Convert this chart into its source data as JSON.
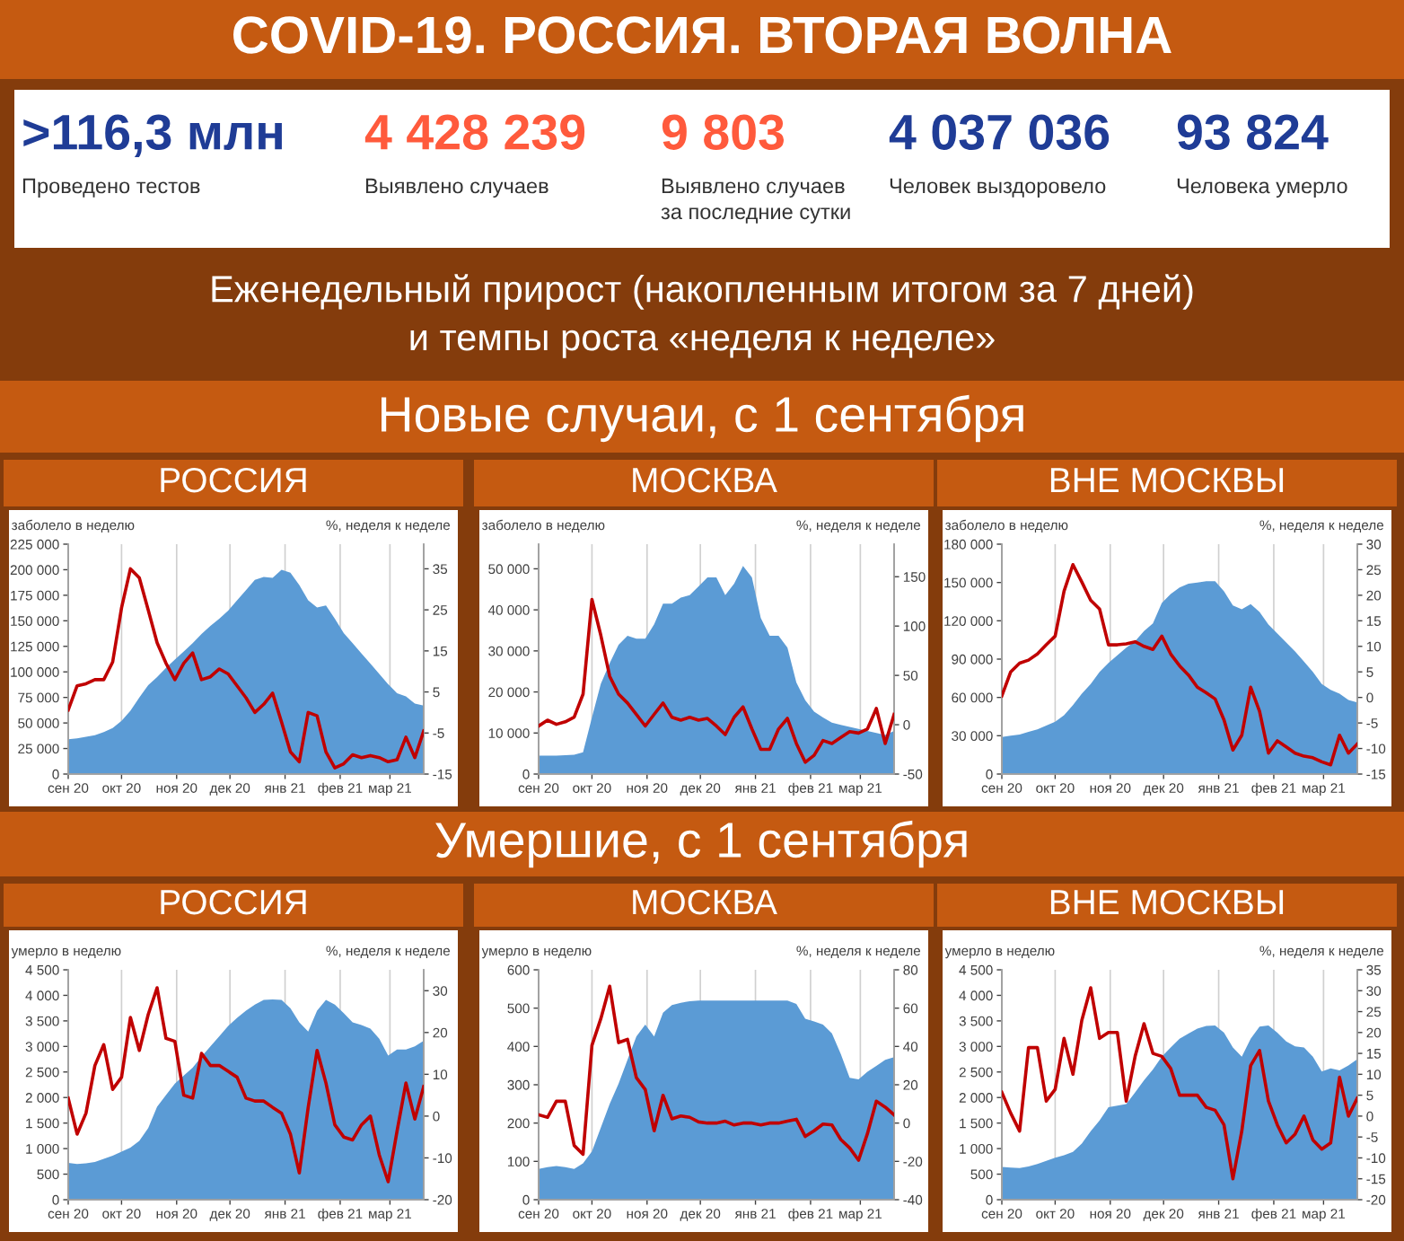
{
  "chart_data": [
    {
      "type": "other",
      "title": "COVID-19. РОССИЯ. ВТОРАЯ ВОЛНА",
      "subtitle": "Еженедельный прирост (накопленным итогом за 7 дней)\nи темпы роста «неделя к неделе»",
      "annotations": [
        ">116,3 млн",
        "Проведено тестов",
        "4 428 239",
        "Выявлено случаев",
        "9 803",
        "Выявлено случаев\nза последние сутки",
        "4 037 036",
        "Человек выздоровело",
        "93 824",
        "Человека умерло",
        "Новые случаи, с 1 сентября",
        "Умершие, с 1 сентября"
      ],
      "colors": [
        "#1f3c96",
        "#ff5a3c",
        "#ff5a3c",
        "#1f3c96",
        "#1f3c96"
      ]
    },
    {
      "type": "area",
      "title": "РОССИЯ",
      "ylabel": "заболело в неделю",
      "y2label": "%, неделя к неделе",
      "grid": "x",
      "x": [
        "2020-09-01",
        "2020-09-06",
        "2020-09-11",
        "2020-09-16",
        "2020-09-21",
        "2020-09-26",
        "2020-10-01",
        "2020-10-06",
        "2020-10-11",
        "2020-10-16",
        "2020-10-21",
        "2020-10-26",
        "2020-10-31",
        "2020-11-05",
        "2020-11-10",
        "2020-11-15",
        "2020-11-20",
        "2020-11-25",
        "2020-11-30",
        "2020-12-05",
        "2020-12-10",
        "2020-12-15",
        "2020-12-20",
        "2020-12-25",
        "2020-12-30",
        "2021-01-04",
        "2021-01-09",
        "2021-01-14",
        "2021-01-19",
        "2021-01-24",
        "2021-01-29",
        "2021-02-03",
        "2021-02-08",
        "2021-02-13",
        "2021-02-18",
        "2021-02-23",
        "2021-02-28",
        "2021-03-05",
        "2021-03-10",
        "2021-03-15",
        "2021-03-20"
      ],
      "xlim": [
        "2020-09-01",
        "2021-03-20"
      ],
      "xticks": [
        {
          "value": "2020-09-01",
          "label": "сен 20"
        },
        {
          "value": "2020-10-01",
          "label": "окт 20"
        },
        {
          "value": "2020-11-01",
          "label": "ноя 20"
        },
        {
          "value": "2020-12-01",
          "label": "дек 20"
        },
        {
          "value": "2021-01-01",
          "label": "янв 21"
        },
        {
          "value": "2021-02-01",
          "label": "фев 21"
        },
        {
          "value": "2021-03-01",
          "label": "мар 21"
        }
      ],
      "ylim": [
        0,
        225000
      ],
      "yticks": [
        0,
        {
          "value": 25000,
          "label": "25 000"
        },
        {
          "value": 50000,
          "label": "50 000"
        },
        {
          "value": 75000,
          "label": "75 000"
        },
        {
          "value": 100000,
          "label": "100 000"
        },
        {
          "value": 125000,
          "label": "125 000"
        },
        {
          "value": 150000,
          "label": "150 000"
        },
        {
          "value": 175000,
          "label": "175 000"
        },
        {
          "value": 200000,
          "label": "200 000"
        },
        {
          "value": 225000,
          "label": "225 000"
        }
      ],
      "y2lim": [
        -15,
        41
      ],
      "y2ticks": [
        -15,
        -5,
        5,
        15,
        25,
        35
      ],
      "series": [
        {
          "type": "area",
          "color": "#5b9bd5",
          "values": [
            34000,
            35000,
            36500,
            38000,
            41000,
            45000,
            52000,
            62000,
            75000,
            87000,
            95000,
            104000,
            112000,
            120000,
            128000,
            137000,
            145000,
            152000,
            160000,
            170000,
            180000,
            190000,
            193000,
            192000,
            200000,
            197000,
            185000,
            170000,
            163000,
            165000,
            152000,
            138000,
            128000,
            118000,
            108000,
            98000,
            88000,
            79000,
            76000,
            69000,
            67000
          ]
        },
        {
          "type": "line",
          "axis": "y2",
          "color": "#c00000",
          "values": [
            0.6,
            6.5,
            7,
            8,
            8,
            12.3,
            25.5,
            35,
            32.8,
            25,
            17,
            12,
            8,
            12,
            14.5,
            8,
            8.7,
            10.6,
            9.4,
            6.5,
            3.6,
            0,
            2,
            4.7,
            -2.3,
            -9.6,
            -12,
            0,
            -0.8,
            -9.6,
            -13.5,
            -12.5,
            -10.3,
            -11,
            -10.5,
            -11,
            -12,
            -11.5,
            -6,
            -11,
            -4.5
          ]
        }
      ]
    },
    {
      "type": "area",
      "title": "МОСКВА",
      "ylabel": "заболело в неделю",
      "y2label": "%, неделя к неделе",
      "grid": "x",
      "x": [
        "2020-09-01",
        "2020-09-06",
        "2020-09-11",
        "2020-09-16",
        "2020-09-21",
        "2020-09-26",
        "2020-10-01",
        "2020-10-06",
        "2020-10-11",
        "2020-10-16",
        "2020-10-21",
        "2020-10-26",
        "2020-10-31",
        "2020-11-05",
        "2020-11-10",
        "2020-11-15",
        "2020-11-20",
        "2020-11-25",
        "2020-11-30",
        "2020-12-05",
        "2020-12-10",
        "2020-12-15",
        "2020-12-20",
        "2020-12-25",
        "2020-12-30",
        "2021-01-04",
        "2021-01-09",
        "2021-01-14",
        "2021-01-19",
        "2021-01-24",
        "2021-01-29",
        "2021-02-03",
        "2021-02-08",
        "2021-02-13",
        "2021-02-18",
        "2021-02-23",
        "2021-02-28",
        "2021-03-05",
        "2021-03-10",
        "2021-03-15",
        "2021-03-20"
      ],
      "xlim": [
        "2020-09-01",
        "2021-03-20"
      ],
      "xticks": [
        {
          "value": "2020-09-01",
          "label": "сен 20"
        },
        {
          "value": "2020-10-01",
          "label": "окт 20"
        },
        {
          "value": "2020-11-01",
          "label": "ноя 20"
        },
        {
          "value": "2020-12-01",
          "label": "дек 20"
        },
        {
          "value": "2021-01-01",
          "label": "янв 21"
        },
        {
          "value": "2021-02-01",
          "label": "фев 21"
        },
        {
          "value": "2021-03-01",
          "label": "мар 21"
        }
      ],
      "ylim": [
        0,
        56000
      ],
      "yticks": [
        0,
        {
          "value": 10000,
          "label": "10 000"
        },
        {
          "value": 20000,
          "label": "20 000"
        },
        {
          "value": 30000,
          "label": "30 000"
        },
        {
          "value": 40000,
          "label": "40 000"
        },
        {
          "value": 50000,
          "label": "50 000"
        }
      ],
      "y2lim": [
        -50,
        183
      ],
      "y2ticks": [
        -50,
        0,
        50,
        100,
        150
      ],
      "series": [
        {
          "type": "area",
          "color": "#5b9bd5",
          "values": [
            4500,
            4500,
            4500,
            4600,
            4700,
            5300,
            13800,
            22000,
            27000,
            31500,
            33700,
            33000,
            33000,
            36500,
            41500,
            41500,
            43000,
            43600,
            45700,
            47900,
            47900,
            43600,
            46400,
            50700,
            47900,
            38000,
            33700,
            33700,
            30800,
            22300,
            18000,
            15200,
            13800,
            12500,
            12000,
            11500,
            11000,
            10500,
            10000,
            9500,
            10500
          ]
        },
        {
          "type": "line",
          "axis": "y2",
          "color": "#c00000",
          "values": [
            -1.3,
            4.6,
            0.4,
            3,
            7.6,
            31,
            127,
            90.6,
            49,
            31,
            22,
            10.5,
            -1.3,
            10.5,
            22,
            7.6,
            4.6,
            7.6,
            4.6,
            6.4,
            -1.3,
            -10,
            7.6,
            18,
            -4.3,
            -25,
            -25,
            -4.3,
            6.4,
            -19,
            -38,
            -31,
            -16,
            -19,
            -13,
            -7,
            -8.5,
            -4.3,
            16.5,
            -19,
            10.5
          ]
        }
      ]
    },
    {
      "type": "area",
      "title": "ВНЕ МОСКВЫ",
      "ylabel": "заболело в неделю",
      "y2label": "%, неделя к неделе",
      "grid": "x",
      "x": [
        "2020-09-01",
        "2020-09-06",
        "2020-09-11",
        "2020-09-16",
        "2020-09-21",
        "2020-09-26",
        "2020-10-01",
        "2020-10-06",
        "2020-10-11",
        "2020-10-16",
        "2020-10-21",
        "2020-10-26",
        "2020-10-31",
        "2020-11-05",
        "2020-11-10",
        "2020-11-15",
        "2020-11-20",
        "2020-11-25",
        "2020-11-30",
        "2020-12-05",
        "2020-12-10",
        "2020-12-15",
        "2020-12-20",
        "2020-12-25",
        "2020-12-30",
        "2021-01-04",
        "2021-01-09",
        "2021-01-14",
        "2021-01-19",
        "2021-01-24",
        "2021-01-29",
        "2021-02-03",
        "2021-02-08",
        "2021-02-13",
        "2021-02-18",
        "2021-02-23",
        "2021-02-28",
        "2021-03-05",
        "2021-03-10",
        "2021-03-15",
        "2021-03-20"
      ],
      "xlim": [
        "2020-09-01",
        "2021-03-20"
      ],
      "xticks": [
        {
          "value": "2020-09-01",
          "label": "сен 20"
        },
        {
          "value": "2020-10-01",
          "label": "окт 20"
        },
        {
          "value": "2020-11-01",
          "label": "ноя 20"
        },
        {
          "value": "2020-12-01",
          "label": "дек 20"
        },
        {
          "value": "2021-01-01",
          "label": "янв 21"
        },
        {
          "value": "2021-02-01",
          "label": "фев 21"
        },
        {
          "value": "2021-03-01",
          "label": "мар 21"
        }
      ],
      "ylim": [
        0,
        180000
      ],
      "yticks": [
        0,
        {
          "value": 30000,
          "label": "30 000"
        },
        {
          "value": 60000,
          "label": "60 000"
        },
        {
          "value": 90000,
          "label": "90 000"
        },
        {
          "value": 120000,
          "label": "120 000"
        },
        {
          "value": 150000,
          "label": "150 000"
        },
        {
          "value": 180000,
          "label": "180 000"
        }
      ],
      "y2lim": [
        -15,
        30
      ],
      "y2ticks": [
        -15,
        -10,
        -5,
        0,
        5,
        10,
        15,
        20,
        25,
        30
      ],
      "series": [
        {
          "type": "area",
          "color": "#5b9bd5",
          "values": [
            29000,
            30000,
            31000,
            33000,
            35000,
            38000,
            41000,
            46000,
            54000,
            63000,
            70500,
            80000,
            87000,
            93000,
            99000,
            104000,
            112000,
            118000,
            134000,
            141000,
            146000,
            149000,
            150000,
            151000,
            151000,
            143000,
            132000,
            129000,
            133000,
            127000,
            117000,
            110000,
            103000,
            96000,
            88000,
            80000,
            70500,
            66000,
            63000,
            58000,
            56000
          ]
        },
        {
          "type": "line",
          "axis": "y2",
          "color": "#c00000",
          "values": [
            0.3,
            5,
            6.7,
            7.3,
            8.5,
            10.3,
            12,
            20.8,
            26,
            22.6,
            19,
            17.3,
            10.3,
            10.3,
            10.5,
            10.9,
            10,
            9.4,
            12,
            8.5,
            6.2,
            4.4,
            2,
            0.9,
            -0.3,
            -4.4,
            -10.3,
            -7.4,
            2,
            -2.7,
            -10.9,
            -8.5,
            -9.7,
            -10.9,
            -11.5,
            -11.8,
            -12.6,
            -13.2,
            -7.4,
            -10.9,
            -9.1
          ]
        }
      ]
    },
    {
      "type": "area",
      "title": "РОССИЯ",
      "ylabel": "умерло в неделю",
      "y2label": "%, неделя к неделе",
      "grid": "x",
      "x": [
        "2020-09-01",
        "2020-09-06",
        "2020-09-11",
        "2020-09-16",
        "2020-09-21",
        "2020-09-26",
        "2020-10-01",
        "2020-10-06",
        "2020-10-11",
        "2020-10-16",
        "2020-10-21",
        "2020-10-26",
        "2020-10-31",
        "2020-11-05",
        "2020-11-10",
        "2020-11-15",
        "2020-11-20",
        "2020-11-25",
        "2020-11-30",
        "2020-12-05",
        "2020-12-10",
        "2020-12-15",
        "2020-12-20",
        "2020-12-25",
        "2020-12-30",
        "2021-01-04",
        "2021-01-09",
        "2021-01-14",
        "2021-01-19",
        "2021-01-24",
        "2021-01-29",
        "2021-02-03",
        "2021-02-08",
        "2021-02-13",
        "2021-02-18",
        "2021-02-23",
        "2021-02-28",
        "2021-03-05",
        "2021-03-10",
        "2021-03-15",
        "2021-03-20"
      ],
      "xlim": [
        "2020-09-01",
        "2021-03-20"
      ],
      "xticks": [
        {
          "value": "2020-09-01",
          "label": "сен 20"
        },
        {
          "value": "2020-10-01",
          "label": "окт 20"
        },
        {
          "value": "2020-11-01",
          "label": "ноя 20"
        },
        {
          "value": "2020-12-01",
          "label": "дек 20"
        },
        {
          "value": "2021-01-01",
          "label": "янв 21"
        },
        {
          "value": "2021-02-01",
          "label": "фев 21"
        },
        {
          "value": "2021-03-01",
          "label": "мар 21"
        }
      ],
      "ylim": [
        0,
        4500
      ],
      "yticks": [
        0,
        500,
        {
          "value": 1000,
          "label": "1 000"
        },
        {
          "value": 1500,
          "label": "1 500"
        },
        {
          "value": 2000,
          "label": "2 000"
        },
        {
          "value": 2500,
          "label": "2 500"
        },
        {
          "value": 3000,
          "label": "3 000"
        },
        {
          "value": 3500,
          "label": "3 500"
        },
        {
          "value": 4000,
          "label": "4 000"
        },
        {
          "value": 4500,
          "label": "4 500"
        }
      ],
      "y2lim": [
        -20,
        35
      ],
      "y2ticks": [
        -20,
        -10,
        0,
        10,
        20,
        30
      ],
      "series": [
        {
          "type": "area",
          "color": "#5b9bd5",
          "values": [
            720,
            700,
            710,
            740,
            800,
            860,
            940,
            1020,
            1150,
            1400,
            1820,
            2050,
            2270,
            2430,
            2585,
            2800,
            3000,
            3200,
            3400,
            3560,
            3700,
            3820,
            3910,
            3920,
            3910,
            3750,
            3470,
            3290,
            3700,
            3910,
            3820,
            3650,
            3470,
            3420,
            3350,
            3150,
            2820,
            2940,
            2940,
            3000,
            3110
          ]
        },
        {
          "type": "line",
          "axis": "y2",
          "color": "#c00000",
          "values": [
            4.3,
            -4.3,
            0.7,
            12.1,
            17.1,
            6.4,
            9.3,
            23.6,
            15.7,
            24.3,
            30.7,
            18.6,
            17.9,
            5,
            4.3,
            15,
            12.1,
            12.1,
            10.7,
            9.3,
            4.3,
            3.6,
            3.6,
            2.1,
            0.7,
            -4.3,
            -13.6,
            2.1,
            15.7,
            7.9,
            -2.1,
            -5,
            -5.7,
            -2.1,
            0,
            -9.3,
            -15.7,
            -3.6,
            7.9,
            -0.7,
            7.1
          ]
        }
      ]
    },
    {
      "type": "area",
      "title": "МОСКВА",
      "ylabel": "умерло в неделю",
      "y2label": "%, неделя к неделе",
      "grid": "x",
      "x": [
        "2020-09-01",
        "2020-09-06",
        "2020-09-11",
        "2020-09-16",
        "2020-09-21",
        "2020-09-26",
        "2020-10-01",
        "2020-10-06",
        "2020-10-11",
        "2020-10-16",
        "2020-10-21",
        "2020-10-26",
        "2020-10-31",
        "2020-11-05",
        "2020-11-10",
        "2020-11-15",
        "2020-11-20",
        "2020-11-25",
        "2020-11-30",
        "2020-12-05",
        "2020-12-10",
        "2020-12-15",
        "2020-12-20",
        "2020-12-25",
        "2020-12-30",
        "2021-01-04",
        "2021-01-09",
        "2021-01-14",
        "2021-01-19",
        "2021-01-24",
        "2021-01-29",
        "2021-02-03",
        "2021-02-08",
        "2021-02-13",
        "2021-02-18",
        "2021-02-23",
        "2021-02-28",
        "2021-03-05",
        "2021-03-10",
        "2021-03-15",
        "2021-03-20"
      ],
      "xlim": [
        "2020-09-01",
        "2021-03-20"
      ],
      "xticks": [
        {
          "value": "2020-09-01",
          "label": "сен 20"
        },
        {
          "value": "2020-10-01",
          "label": "окт 20"
        },
        {
          "value": "2020-11-01",
          "label": "ноя 20"
        },
        {
          "value": "2020-12-01",
          "label": "дек 20"
        },
        {
          "value": "2021-01-01",
          "label": "янв 21"
        },
        {
          "value": "2021-02-01",
          "label": "фев 21"
        },
        {
          "value": "2021-03-01",
          "label": "мар 21"
        }
      ],
      "ylim": [
        0,
        600
      ],
      "yticks": [
        0,
        100,
        200,
        300,
        400,
        500,
        600
      ],
      "y2lim": [
        -40,
        80
      ],
      "y2ticks": [
        -40,
        -20,
        0,
        20,
        40,
        60,
        80
      ],
      "series": [
        {
          "type": "area",
          "color": "#5b9bd5",
          "values": [
            80,
            85,
            88,
            85,
            80,
            95,
            126,
            188,
            250,
            303,
            365,
            426,
            457,
            426,
            488,
            508,
            514,
            518,
            520,
            520,
            520,
            520,
            520,
            520,
            520,
            520,
            520,
            520,
            520,
            511,
            472,
            465,
            457,
            434,
            380,
            318,
            314,
            334,
            349,
            365,
            372
          ]
        },
        {
          "type": "line",
          "axis": "y2",
          "color": "#c00000",
          "values": [
            4.3,
            3,
            11.4,
            11.4,
            -11.7,
            -16.3,
            40.6,
            54.5,
            71.4,
            42,
            43.7,
            23.7,
            17.5,
            -4,
            14.5,
            2.2,
            3.7,
            3,
            0.6,
            0,
            0,
            1,
            -1,
            0,
            0,
            -1,
            0,
            0,
            1,
            2,
            -7,
            -4,
            -0.5,
            -1,
            -8.6,
            -13,
            -19.4,
            -5.5,
            11.4,
            8.3,
            4.3
          ]
        }
      ]
    },
    {
      "type": "area",
      "title": "ВНЕ МОСКВЫ",
      "ylabel": "умерло в неделю",
      "y2label": "%, неделя к неделе",
      "grid": "x",
      "x": [
        "2020-09-01",
        "2020-09-06",
        "2020-09-11",
        "2020-09-16",
        "2020-09-21",
        "2020-09-26",
        "2020-10-01",
        "2020-10-06",
        "2020-10-11",
        "2020-10-16",
        "2020-10-21",
        "2020-10-26",
        "2020-10-31",
        "2020-11-05",
        "2020-11-10",
        "2020-11-15",
        "2020-11-20",
        "2020-11-25",
        "2020-11-30",
        "2020-12-05",
        "2020-12-10",
        "2020-12-15",
        "2020-12-20",
        "2020-12-25",
        "2020-12-30",
        "2021-01-04",
        "2021-01-09",
        "2021-01-14",
        "2021-01-19",
        "2021-01-24",
        "2021-01-29",
        "2021-02-03",
        "2021-02-08",
        "2021-02-13",
        "2021-02-18",
        "2021-02-23",
        "2021-02-28",
        "2021-03-05",
        "2021-03-10",
        "2021-03-15",
        "2021-03-20"
      ],
      "xlim": [
        "2020-09-01",
        "2021-03-20"
      ],
      "xticks": [
        {
          "value": "2020-09-01",
          "label": "сен 20"
        },
        {
          "value": "2020-10-01",
          "label": "окт 20"
        },
        {
          "value": "2020-11-01",
          "label": "ноя 20"
        },
        {
          "value": "2020-12-01",
          "label": "дек 20"
        },
        {
          "value": "2021-01-01",
          "label": "янв 21"
        },
        {
          "value": "2021-02-01",
          "label": "фев 21"
        },
        {
          "value": "2021-03-01",
          "label": "мар 21"
        }
      ],
      "ylim": [
        0,
        4500
      ],
      "yticks": [
        0,
        500,
        {
          "value": 1000,
          "label": "1 000"
        },
        {
          "value": 1500,
          "label": "1 500"
        },
        {
          "value": 2000,
          "label": "2 000"
        },
        {
          "value": 2500,
          "label": "2 500"
        },
        {
          "value": 3000,
          "label": "3 000"
        },
        {
          "value": 3500,
          "label": "3 500"
        },
        {
          "value": 4000,
          "label": "4 000"
        },
        {
          "value": 4500,
          "label": "4 500"
        }
      ],
      "y2lim": [
        -20,
        35
      ],
      "y2ticks": [
        -20,
        -15,
        -10,
        -5,
        0,
        5,
        10,
        15,
        20,
        25,
        30,
        35
      ],
      "series": [
        {
          "type": "area",
          "color": "#5b9bd5",
          "values": [
            640,
            630,
            620,
            650,
            700,
            760,
            820,
            870,
            935,
            1100,
            1340,
            1550,
            1810,
            1840,
            1870,
            2100,
            2340,
            2550,
            2800,
            2980,
            3150,
            3250,
            3350,
            3400,
            3410,
            3270,
            2980,
            2800,
            3150,
            3390,
            3410,
            3270,
            3100,
            3000,
            2980,
            2800,
            2510,
            2570,
            2530,
            2630,
            2750
          ]
        },
        {
          "type": "line",
          "axis": "y2",
          "color": "#c00000",
          "values": [
            5.7,
            0.7,
            -3.6,
            16.4,
            16.4,
            3.6,
            6.4,
            18.6,
            10,
            22.9,
            30.7,
            18.6,
            20,
            20,
            3.6,
            14.3,
            22.1,
            15,
            14.3,
            11.4,
            5,
            5,
            5,
            2.1,
            1.4,
            -2.1,
            -15,
            -3.6,
            12.1,
            15.7,
            3.6,
            -2.1,
            -6.4,
            -4.3,
            0,
            -5.7,
            -7.9,
            -6.4,
            9.3,
            0,
            4.3
          ]
        }
      ]
    }
  ]
}
